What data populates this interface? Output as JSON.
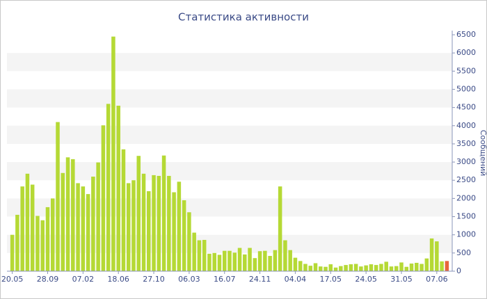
{
  "chart_data": {
    "type": "bar",
    "title": "Статистика активности",
    "y_label": "Сообщений",
    "categories": [
      "20.05",
      null,
      null,
      null,
      null,
      null,
      null,
      "28.09",
      null,
      null,
      null,
      null,
      null,
      null,
      "07.02",
      null,
      null,
      null,
      null,
      null,
      null,
      "18.06",
      null,
      null,
      null,
      null,
      null,
      null,
      "27.10",
      null,
      null,
      null,
      null,
      null,
      null,
      "06.03",
      null,
      null,
      null,
      null,
      null,
      null,
      "16.07",
      null,
      null,
      null,
      null,
      null,
      null,
      "24.11",
      null,
      null,
      null,
      null,
      null,
      null,
      "04.04",
      null,
      null,
      null,
      null,
      null,
      null,
      "17.05",
      null,
      null,
      null,
      null,
      null,
      null,
      "24.05",
      null,
      null,
      null,
      null,
      null,
      null,
      "31.05",
      null,
      null,
      null,
      null,
      null,
      null,
      "07.06",
      null,
      null
    ],
    "values": [
      1000,
      1550,
      2330,
      2680,
      2380,
      1520,
      1400,
      1760,
      2000,
      4100,
      2700,
      3130,
      3080,
      2420,
      2330,
      2120,
      2600,
      2990,
      4010,
      4600,
      6450,
      4550,
      3350,
      2420,
      2500,
      3170,
      2680,
      2200,
      2640,
      2620,
      3180,
      2620,
      2170,
      2460,
      1950,
      1620,
      1060,
      850,
      860,
      480,
      500,
      450,
      560,
      560,
      510,
      640,
      460,
      640,
      360,
      550,
      560,
      420,
      580,
      2330,
      850,
      580,
      370,
      280,
      200,
      150,
      220,
      130,
      120,
      190,
      100,
      140,
      170,
      190,
      200,
      130,
      160,
      190,
      170,
      200,
      260,
      130,
      140,
      240,
      120,
      210,
      230,
      200,
      350,
      900,
      820,
      270,
      280
    ],
    "color": "#b5d935",
    "highlight": {
      "index": 86,
      "color": "#e8643c"
    },
    "ylim": [
      0,
      6500
    ],
    "yticks": [
      0,
      500,
      1000,
      1500,
      2000,
      2500,
      3000,
      3500,
      4000,
      4500,
      5000,
      5500,
      6000,
      6500
    ],
    "grid": "bands",
    "y_axis_side": "right"
  }
}
